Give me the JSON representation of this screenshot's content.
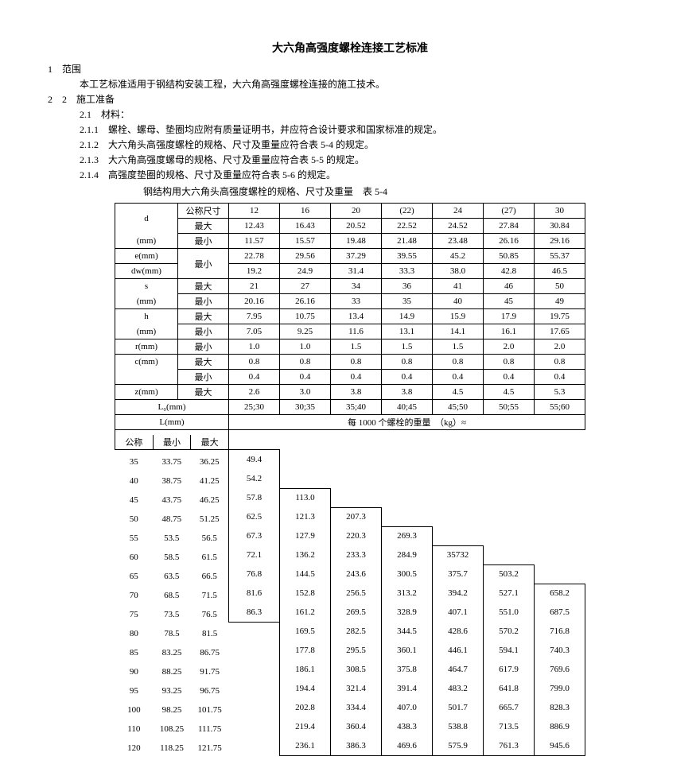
{
  "title": "大六角高强度螺栓连接工艺标准",
  "text": {
    "s1": "1　范围",
    "s1b": "本工艺标准适用于钢结构安装工程，大六角高强度螺栓连接的施工技术。",
    "s2": "2　2　施工准备",
    "s21": "2.1　材料：",
    "s211": "2.1.1　螺栓、螺母、垫圈均应附有质量证明书，并应符合设计要求和国家标准的规定。",
    "s212": "2.1.2　大六角头高强度螺栓的规格、尺寸及重量应符合表 5-4 的规定。",
    "s213": "2.1.3　大六角高强度螺母的规格、尺寸及重量应符合表 5-5 的规定。",
    "s214": "2.1.4　高强度垫圈的规格、尺寸及重量应符合表 5-6 的规定。",
    "tcap": "钢结构用大六角头高强度螺栓的规格、尺寸及重量　表 5-4"
  },
  "head": [
    "12",
    "16",
    "20",
    "(22)",
    "24",
    "(27)",
    "30"
  ],
  "rows1": [
    {
      "l1": "d",
      "l2": "(mm)",
      "sub": [
        "公称尺寸",
        "最大",
        "最小"
      ],
      "v": [
        [
          "12",
          "16",
          "20",
          "(22)",
          "24",
          "(27)",
          "30"
        ],
        [
          "12.43",
          "16.43",
          "20.52",
          "22.52",
          "24.52",
          "27.84",
          "30.84"
        ],
        [
          "11.57",
          "15.57",
          "19.48",
          "21.48",
          "23.48",
          "26.16",
          "29.16"
        ]
      ]
    },
    {
      "l1": "e(mm)",
      "l2": "dw(mm)",
      "sub": [
        "最小",
        "最小"
      ],
      "mergesub": "最小",
      "v": [
        [
          "22.78",
          "29.56",
          "37.29",
          "39.55",
          "45.2",
          "50.85",
          "55.37"
        ],
        [
          "19.2",
          "24.9",
          "31.4",
          "33.3",
          "38.0",
          "42.8",
          "46.5"
        ]
      ]
    },
    {
      "l1": "s",
      "l2": "(mm)",
      "sub": [
        "最大",
        "最小"
      ],
      "v": [
        [
          "21",
          "27",
          "34",
          "36",
          "41",
          "46",
          "50"
        ],
        [
          "20.16",
          "26.16",
          "33",
          "35",
          "40",
          "45",
          "49"
        ]
      ]
    },
    {
      "l1": "h",
      "l2": "(mm)",
      "sub": [
        "最大",
        "最小"
      ],
      "v": [
        [
          "7.95",
          "10.75",
          "13.4",
          "14.9",
          "15.9",
          "17.9",
          "19.75"
        ],
        [
          "7.05",
          "9.25",
          "11.6",
          "13.1",
          "14.1",
          "16.1",
          "17.65"
        ]
      ]
    },
    {
      "l1": "r(mm)",
      "sub": [
        "最小"
      ],
      "v": [
        [
          "1.0",
          "1.0",
          "1.5",
          "1.5",
          "1.5",
          "2.0",
          "2.0"
        ]
      ]
    },
    {
      "l1": "c(mm)",
      "sub": [
        "最大",
        "最小"
      ],
      "v": [
        [
          "0.8",
          "0.8",
          "0.8",
          "0.8",
          "0.8",
          "0.8",
          "0.8"
        ],
        [
          "0.4",
          "0.4",
          "0.4",
          "0.4",
          "0.4",
          "0.4",
          "0.4"
        ]
      ]
    },
    {
      "l1": "z(mm)",
      "sub": [
        "最大"
      ],
      "v": [
        [
          "2.6",
          "3.0",
          "3.8",
          "3.8",
          "4.5",
          "4.5",
          "5.3"
        ]
      ]
    }
  ],
  "L0": [
    "25;30",
    "30;35",
    "35;40",
    "40;45",
    "45;50",
    "50;55",
    "55;60"
  ],
  "Lhdr": "L(mm)",
  "wthdr": "每 1000 个螺栓的重量　（kg）≈",
  "Lsub": [
    "公称",
    "最小",
    "最大"
  ],
  "weightRows": [
    {
      "n": "35",
      "min": "33.75",
      "max": "36.25",
      "w": [
        "49.4",
        "",
        "",
        "",
        "",
        "",
        ""
      ]
    },
    {
      "n": "40",
      "min": "38.75",
      "max": "41.25",
      "w": [
        "54.2",
        "",
        "",
        "",
        "",
        "",
        ""
      ]
    },
    {
      "n": "45",
      "min": "43.75",
      "max": "46.25",
      "w": [
        "57.8",
        "113.0",
        "",
        "",
        "",
        "",
        ""
      ]
    },
    {
      "n": "50",
      "min": "48.75",
      "max": "51.25",
      "w": [
        "62.5",
        "121.3",
        "207.3",
        "",
        "",
        "",
        ""
      ]
    },
    {
      "n": "55",
      "min": "53.5",
      "max": "56.5",
      "w": [
        "67.3",
        "127.9",
        "220.3",
        "269.3",
        "",
        "",
        ""
      ]
    },
    {
      "n": "60",
      "min": "58.5",
      "max": "61.5",
      "w": [
        "72.1",
        "136.2",
        "233.3",
        "284.9",
        "35732",
        "",
        ""
      ]
    },
    {
      "n": "65",
      "min": "63.5",
      "max": "66.5",
      "w": [
        "76.8",
        "144.5",
        "243.6",
        "300.5",
        "375.7",
        "503.2",
        ""
      ]
    },
    {
      "n": "70",
      "min": "68.5",
      "max": "71.5",
      "w": [
        "81.6",
        "152.8",
        "256.5",
        "313.2",
        "394.2",
        "527.1",
        "658.2"
      ]
    },
    {
      "n": "75",
      "min": "73.5",
      "max": "76.5",
      "w": [
        "86.3",
        "161.2",
        "269.5",
        "328.9",
        "407.1",
        "551.0",
        "687.5"
      ]
    },
    {
      "n": "80",
      "min": "78.5",
      "max": "81.5",
      "w": [
        "",
        "169.5",
        "282.5",
        "344.5",
        "428.6",
        "570.2",
        "716.8"
      ]
    },
    {
      "n": "85",
      "min": "83.25",
      "max": "86.75",
      "w": [
        "",
        "177.8",
        "295.5",
        "360.1",
        "446.1",
        "594.1",
        "740.3"
      ]
    },
    {
      "n": "90",
      "min": "88.25",
      "max": "91.75",
      "w": [
        "",
        "186.1",
        "308.5",
        "375.8",
        "464.7",
        "617.9",
        "769.6"
      ]
    },
    {
      "n": "95",
      "min": "93.25",
      "max": "96.75",
      "w": [
        "",
        "194.4",
        "321.4",
        "391.4",
        "483.2",
        "641.8",
        "799.0"
      ]
    },
    {
      "n": "100",
      "min": "98.25",
      "max": "101.75",
      "w": [
        "",
        "202.8",
        "334.4",
        "407.0",
        "501.7",
        "665.7",
        "828.3"
      ]
    },
    {
      "n": "110",
      "min": "108.25",
      "max": "111.75",
      "w": [
        "",
        "219.4",
        "360.4",
        "438.3",
        "538.8",
        "713.5",
        "886.9"
      ]
    },
    {
      "n": "120",
      "min": "118.25",
      "max": "121.75",
      "w": [
        "",
        "236.1",
        "386.3",
        "469.6",
        "575.9",
        "761.3",
        "945.6"
      ]
    }
  ],
  "style": {
    "bg": "#ffffff",
    "border": "#000000",
    "font": "SimSun",
    "fs_body": 12,
    "fs_table": 11
  }
}
